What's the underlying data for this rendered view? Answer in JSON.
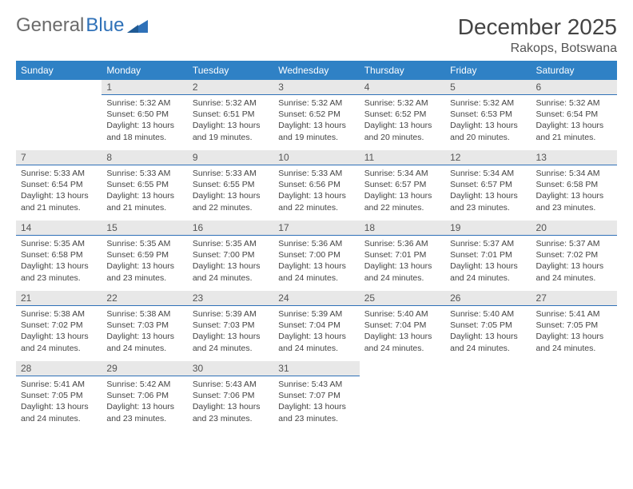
{
  "logo": {
    "part1": "General",
    "part2": "Blue"
  },
  "title": "December 2025",
  "location": "Rakops, Botswana",
  "colors": {
    "header_bg": "#2f81c5",
    "header_text": "#ffffff",
    "daybar_bg": "#e8e8e8",
    "daybar_border": "#2f71b8",
    "body_text": "#444444",
    "logo_gray": "#6b6b6b",
    "logo_blue": "#2f71b8",
    "page_bg": "#ffffff"
  },
  "typography": {
    "title_fontsize_pt": 21,
    "location_fontsize_pt": 12,
    "dayheader_fontsize_pt": 9,
    "body_fontsize_pt": 8
  },
  "weekdays": [
    "Sunday",
    "Monday",
    "Tuesday",
    "Wednesday",
    "Thursday",
    "Friday",
    "Saturday"
  ],
  "layout": {
    "first_weekday_index": 1,
    "days_in_month": 31,
    "rows": 5,
    "cols": 7
  },
  "days": {
    "1": {
      "sunrise": "5:32 AM",
      "sunset": "6:50 PM",
      "daylight": "13 hours and 18 minutes."
    },
    "2": {
      "sunrise": "5:32 AM",
      "sunset": "6:51 PM",
      "daylight": "13 hours and 19 minutes."
    },
    "3": {
      "sunrise": "5:32 AM",
      "sunset": "6:52 PM",
      "daylight": "13 hours and 19 minutes."
    },
    "4": {
      "sunrise": "5:32 AM",
      "sunset": "6:52 PM",
      "daylight": "13 hours and 20 minutes."
    },
    "5": {
      "sunrise": "5:32 AM",
      "sunset": "6:53 PM",
      "daylight": "13 hours and 20 minutes."
    },
    "6": {
      "sunrise": "5:32 AM",
      "sunset": "6:54 PM",
      "daylight": "13 hours and 21 minutes."
    },
    "7": {
      "sunrise": "5:33 AM",
      "sunset": "6:54 PM",
      "daylight": "13 hours and 21 minutes."
    },
    "8": {
      "sunrise": "5:33 AM",
      "sunset": "6:55 PM",
      "daylight": "13 hours and 21 minutes."
    },
    "9": {
      "sunrise": "5:33 AM",
      "sunset": "6:55 PM",
      "daylight": "13 hours and 22 minutes."
    },
    "10": {
      "sunrise": "5:33 AM",
      "sunset": "6:56 PM",
      "daylight": "13 hours and 22 minutes."
    },
    "11": {
      "sunrise": "5:34 AM",
      "sunset": "6:57 PM",
      "daylight": "13 hours and 22 minutes."
    },
    "12": {
      "sunrise": "5:34 AM",
      "sunset": "6:57 PM",
      "daylight": "13 hours and 23 minutes."
    },
    "13": {
      "sunrise": "5:34 AM",
      "sunset": "6:58 PM",
      "daylight": "13 hours and 23 minutes."
    },
    "14": {
      "sunrise": "5:35 AM",
      "sunset": "6:58 PM",
      "daylight": "13 hours and 23 minutes."
    },
    "15": {
      "sunrise": "5:35 AM",
      "sunset": "6:59 PM",
      "daylight": "13 hours and 23 minutes."
    },
    "16": {
      "sunrise": "5:35 AM",
      "sunset": "7:00 PM",
      "daylight": "13 hours and 24 minutes."
    },
    "17": {
      "sunrise": "5:36 AM",
      "sunset": "7:00 PM",
      "daylight": "13 hours and 24 minutes."
    },
    "18": {
      "sunrise": "5:36 AM",
      "sunset": "7:01 PM",
      "daylight": "13 hours and 24 minutes."
    },
    "19": {
      "sunrise": "5:37 AM",
      "sunset": "7:01 PM",
      "daylight": "13 hours and 24 minutes."
    },
    "20": {
      "sunrise": "5:37 AM",
      "sunset": "7:02 PM",
      "daylight": "13 hours and 24 minutes."
    },
    "21": {
      "sunrise": "5:38 AM",
      "sunset": "7:02 PM",
      "daylight": "13 hours and 24 minutes."
    },
    "22": {
      "sunrise": "5:38 AM",
      "sunset": "7:03 PM",
      "daylight": "13 hours and 24 minutes."
    },
    "23": {
      "sunrise": "5:39 AM",
      "sunset": "7:03 PM",
      "daylight": "13 hours and 24 minutes."
    },
    "24": {
      "sunrise": "5:39 AM",
      "sunset": "7:04 PM",
      "daylight": "13 hours and 24 minutes."
    },
    "25": {
      "sunrise": "5:40 AM",
      "sunset": "7:04 PM",
      "daylight": "13 hours and 24 minutes."
    },
    "26": {
      "sunrise": "5:40 AM",
      "sunset": "7:05 PM",
      "daylight": "13 hours and 24 minutes."
    },
    "27": {
      "sunrise": "5:41 AM",
      "sunset": "7:05 PM",
      "daylight": "13 hours and 24 minutes."
    },
    "28": {
      "sunrise": "5:41 AM",
      "sunset": "7:05 PM",
      "daylight": "13 hours and 24 minutes."
    },
    "29": {
      "sunrise": "5:42 AM",
      "sunset": "7:06 PM",
      "daylight": "13 hours and 23 minutes."
    },
    "30": {
      "sunrise": "5:43 AM",
      "sunset": "7:06 PM",
      "daylight": "13 hours and 23 minutes."
    },
    "31": {
      "sunrise": "5:43 AM",
      "sunset": "7:07 PM",
      "daylight": "13 hours and 23 minutes."
    }
  },
  "labels": {
    "sunrise": "Sunrise: ",
    "sunset": "Sunset: ",
    "daylight": "Daylight: "
  }
}
